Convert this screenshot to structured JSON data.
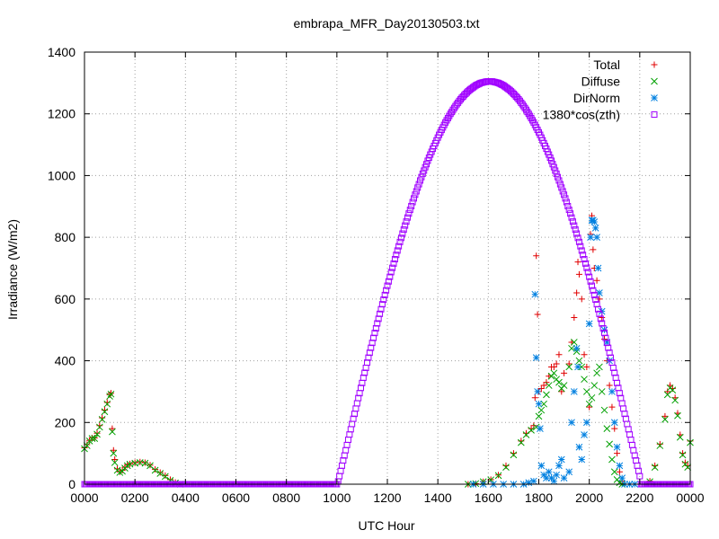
{
  "chart_data": {
    "type": "scatter",
    "title": "embrapa_MFR_Day20130503.txt",
    "xlabel": "UTC Hour",
    "ylabel": "Irradiance (W/m2)",
    "xlim": [
      0,
      24
    ],
    "ylim": [
      0,
      1400
    ],
    "grid": true,
    "legend_position": "top-right",
    "x_ticks": [
      {
        "value": 0,
        "label": "0000"
      },
      {
        "value": 2,
        "label": "0200"
      },
      {
        "value": 4,
        "label": "0400"
      },
      {
        "value": 6,
        "label": "0600"
      },
      {
        "value": 8,
        "label": "0800"
      },
      {
        "value": 10,
        "label": "1000"
      },
      {
        "value": 12,
        "label": "1200"
      },
      {
        "value": 14,
        "label": "1400"
      },
      {
        "value": 16,
        "label": "1600"
      },
      {
        "value": 18,
        "label": "1800"
      },
      {
        "value": 20,
        "label": "2000"
      },
      {
        "value": 22,
        "label": "2200"
      },
      {
        "value": 24,
        "label": "0000"
      }
    ],
    "y_ticks": [
      {
        "value": 0,
        "label": "0"
      },
      {
        "value": 200,
        "label": "200"
      },
      {
        "value": 400,
        "label": "400"
      },
      {
        "value": 600,
        "label": "600"
      },
      {
        "value": 800,
        "label": "800"
      },
      {
        "value": 1000,
        "label": "1000"
      },
      {
        "value": 1200,
        "label": "1200"
      },
      {
        "value": 1400,
        "label": "1400"
      }
    ],
    "series": [
      {
        "name": "Total",
        "marker": "plus",
        "color": "#e00000",
        "points": [
          [
            0.0,
            118
          ],
          [
            0.1,
            128
          ],
          [
            0.2,
            142
          ],
          [
            0.3,
            150
          ],
          [
            0.4,
            150
          ],
          [
            0.5,
            165
          ],
          [
            0.6,
            190
          ],
          [
            0.7,
            215
          ],
          [
            0.8,
            240
          ],
          [
            0.9,
            265
          ],
          [
            1.0,
            290
          ],
          [
            1.05,
            295
          ],
          [
            1.1,
            180
          ],
          [
            1.15,
            110
          ],
          [
            1.2,
            80
          ],
          [
            1.3,
            50
          ],
          [
            1.4,
            40
          ],
          [
            1.5,
            45
          ],
          [
            1.6,
            55
          ],
          [
            1.7,
            62
          ],
          [
            1.8,
            66
          ],
          [
            2.0,
            70
          ],
          [
            2.2,
            72
          ],
          [
            2.4,
            70
          ],
          [
            2.6,
            62
          ],
          [
            2.8,
            48
          ],
          [
            3.0,
            38
          ],
          [
            3.2,
            28
          ],
          [
            3.4,
            15
          ],
          [
            3.6,
            6
          ],
          [
            3.8,
            0
          ],
          [
            15.2,
            0
          ],
          [
            15.5,
            2
          ],
          [
            15.8,
            8
          ],
          [
            16.1,
            15
          ],
          [
            16.4,
            30
          ],
          [
            16.7,
            60
          ],
          [
            17.0,
            100
          ],
          [
            17.3,
            140
          ],
          [
            17.5,
            165
          ],
          [
            17.7,
            180
          ],
          [
            17.8,
            190
          ],
          [
            17.85,
            280
          ],
          [
            17.9,
            740
          ],
          [
            17.95,
            550
          ],
          [
            18.0,
            300
          ],
          [
            18.1,
            310
          ],
          [
            18.2,
            320
          ],
          [
            18.3,
            330
          ],
          [
            18.4,
            350
          ],
          [
            18.5,
            380
          ],
          [
            18.6,
            380
          ],
          [
            18.7,
            390
          ],
          [
            18.8,
            420
          ],
          [
            18.9,
            300
          ],
          [
            19.0,
            360
          ],
          [
            19.2,
            390
          ],
          [
            19.3,
            460
          ],
          [
            19.4,
            540
          ],
          [
            19.5,
            620
          ],
          [
            19.55,
            720
          ],
          [
            19.6,
            680
          ],
          [
            19.7,
            600
          ],
          [
            19.8,
            420
          ],
          [
            19.9,
            380
          ],
          [
            20.0,
            250
          ],
          [
            20.05,
            810
          ],
          [
            20.1,
            870
          ],
          [
            20.15,
            760
          ],
          [
            20.2,
            700
          ],
          [
            20.3,
            660
          ],
          [
            20.4,
            600
          ],
          [
            20.5,
            540
          ],
          [
            20.6,
            470
          ],
          [
            20.7,
            400
          ],
          [
            20.8,
            320
          ],
          [
            20.9,
            250
          ],
          [
            21.0,
            180
          ],
          [
            21.1,
            100
          ],
          [
            21.2,
            40
          ],
          [
            21.3,
            10
          ],
          [
            21.4,
            0
          ],
          [
            22.4,
            10
          ],
          [
            22.6,
            60
          ],
          [
            22.8,
            130
          ],
          [
            23.0,
            220
          ],
          [
            23.1,
            300
          ],
          [
            23.2,
            320
          ],
          [
            23.3,
            310
          ],
          [
            23.4,
            280
          ],
          [
            23.5,
            230
          ],
          [
            23.6,
            160
          ],
          [
            23.7,
            100
          ],
          [
            23.8,
            70
          ],
          [
            23.9,
            60
          ],
          [
            24.0,
            140
          ]
        ]
      },
      {
        "name": "Diffuse",
        "marker": "cross",
        "color": "#00a000",
        "points": [
          [
            0.0,
            115
          ],
          [
            0.1,
            125
          ],
          [
            0.2,
            140
          ],
          [
            0.3,
            148
          ],
          [
            0.4,
            148
          ],
          [
            0.5,
            162
          ],
          [
            0.6,
            185
          ],
          [
            0.7,
            210
          ],
          [
            0.8,
            235
          ],
          [
            0.9,
            260
          ],
          [
            1.0,
            285
          ],
          [
            1.05,
            292
          ],
          [
            1.1,
            170
          ],
          [
            1.15,
            100
          ],
          [
            1.2,
            70
          ],
          [
            1.3,
            45
          ],
          [
            1.4,
            38
          ],
          [
            1.5,
            42
          ],
          [
            1.6,
            52
          ],
          [
            1.7,
            60
          ],
          [
            1.8,
            65
          ],
          [
            2.0,
            68
          ],
          [
            2.2,
            70
          ],
          [
            2.4,
            68
          ],
          [
            2.6,
            60
          ],
          [
            2.8,
            45
          ],
          [
            3.0,
            35
          ],
          [
            3.2,
            25
          ],
          [
            3.4,
            12
          ],
          [
            3.6,
            4
          ],
          [
            3.8,
            0
          ],
          [
            15.2,
            0
          ],
          [
            15.5,
            2
          ],
          [
            15.8,
            8
          ],
          [
            16.1,
            14
          ],
          [
            16.4,
            28
          ],
          [
            16.7,
            55
          ],
          [
            17.0,
            95
          ],
          [
            17.3,
            135
          ],
          [
            17.5,
            160
          ],
          [
            17.7,
            175
          ],
          [
            17.9,
            185
          ],
          [
            18.0,
            220
          ],
          [
            18.1,
            240
          ],
          [
            18.2,
            260
          ],
          [
            18.3,
            290
          ],
          [
            18.4,
            320
          ],
          [
            18.5,
            350
          ],
          [
            18.6,
            360
          ],
          [
            18.7,
            340
          ],
          [
            18.8,
            330
          ],
          [
            18.9,
            310
          ],
          [
            19.0,
            320
          ],
          [
            19.2,
            380
          ],
          [
            19.3,
            440
          ],
          [
            19.4,
            460
          ],
          [
            19.5,
            430
          ],
          [
            19.6,
            400
          ],
          [
            19.7,
            380
          ],
          [
            19.8,
            340
          ],
          [
            19.9,
            300
          ],
          [
            20.0,
            260
          ],
          [
            20.1,
            280
          ],
          [
            20.2,
            320
          ],
          [
            20.3,
            360
          ],
          [
            20.4,
            380
          ],
          [
            20.5,
            300
          ],
          [
            20.6,
            240
          ],
          [
            20.7,
            180
          ],
          [
            20.8,
            130
          ],
          [
            20.9,
            80
          ],
          [
            21.0,
            40
          ],
          [
            21.1,
            15
          ],
          [
            21.2,
            5
          ],
          [
            21.3,
            0
          ],
          [
            22.4,
            8
          ],
          [
            22.6,
            55
          ],
          [
            22.8,
            125
          ],
          [
            23.0,
            210
          ],
          [
            23.1,
            290
          ],
          [
            23.2,
            312
          ],
          [
            23.3,
            305
          ],
          [
            23.4,
            272
          ],
          [
            23.5,
            222
          ],
          [
            23.6,
            152
          ],
          [
            23.7,
            95
          ],
          [
            23.8,
            65
          ],
          [
            23.9,
            55
          ],
          [
            24.0,
            135
          ]
        ]
      },
      {
        "name": "DirNorm",
        "marker": "star",
        "color": "#0080e0",
        "points": [
          [
            15.4,
            0
          ],
          [
            15.8,
            0
          ],
          [
            16.2,
            0
          ],
          [
            16.6,
            0
          ],
          [
            17.0,
            0
          ],
          [
            17.4,
            0
          ],
          [
            17.6,
            5
          ],
          [
            17.8,
            10
          ],
          [
            17.85,
            615
          ],
          [
            17.9,
            410
          ],
          [
            17.95,
            300
          ],
          [
            18.0,
            260
          ],
          [
            18.05,
            180
          ],
          [
            18.1,
            60
          ],
          [
            18.2,
            30
          ],
          [
            18.3,
            20
          ],
          [
            18.4,
            40
          ],
          [
            18.5,
            20
          ],
          [
            18.6,
            10
          ],
          [
            18.7,
            30
          ],
          [
            18.8,
            60
          ],
          [
            18.9,
            80
          ],
          [
            19.0,
            20
          ],
          [
            19.2,
            40
          ],
          [
            19.3,
            200
          ],
          [
            19.4,
            300
          ],
          [
            19.5,
            440
          ],
          [
            19.55,
            380
          ],
          [
            19.6,
            120
          ],
          [
            19.7,
            80
          ],
          [
            19.8,
            160
          ],
          [
            19.9,
            200
          ],
          [
            20.0,
            520
          ],
          [
            20.05,
            800
          ],
          [
            20.1,
            855
          ],
          [
            20.15,
            855
          ],
          [
            20.2,
            850
          ],
          [
            20.25,
            830
          ],
          [
            20.3,
            800
          ],
          [
            20.35,
            700
          ],
          [
            20.4,
            620
          ],
          [
            20.5,
            560
          ],
          [
            20.6,
            500
          ],
          [
            20.7,
            460
          ],
          [
            20.8,
            400
          ],
          [
            20.9,
            300
          ],
          [
            21.0,
            200
          ],
          [
            21.1,
            120
          ],
          [
            21.2,
            60
          ],
          [
            21.3,
            20
          ],
          [
            21.4,
            0
          ],
          [
            21.6,
            0
          ],
          [
            21.8,
            0
          ]
        ]
      },
      {
        "name": "1380*cos(zth)",
        "marker": "square",
        "color": "#a000ff",
        "curve": {
          "flat_value": 0,
          "rise_start": 10.0,
          "peak_x": 16.05,
          "peak_y": 1305,
          "set_end": 22.05,
          "step": 0.05
        }
      }
    ]
  }
}
